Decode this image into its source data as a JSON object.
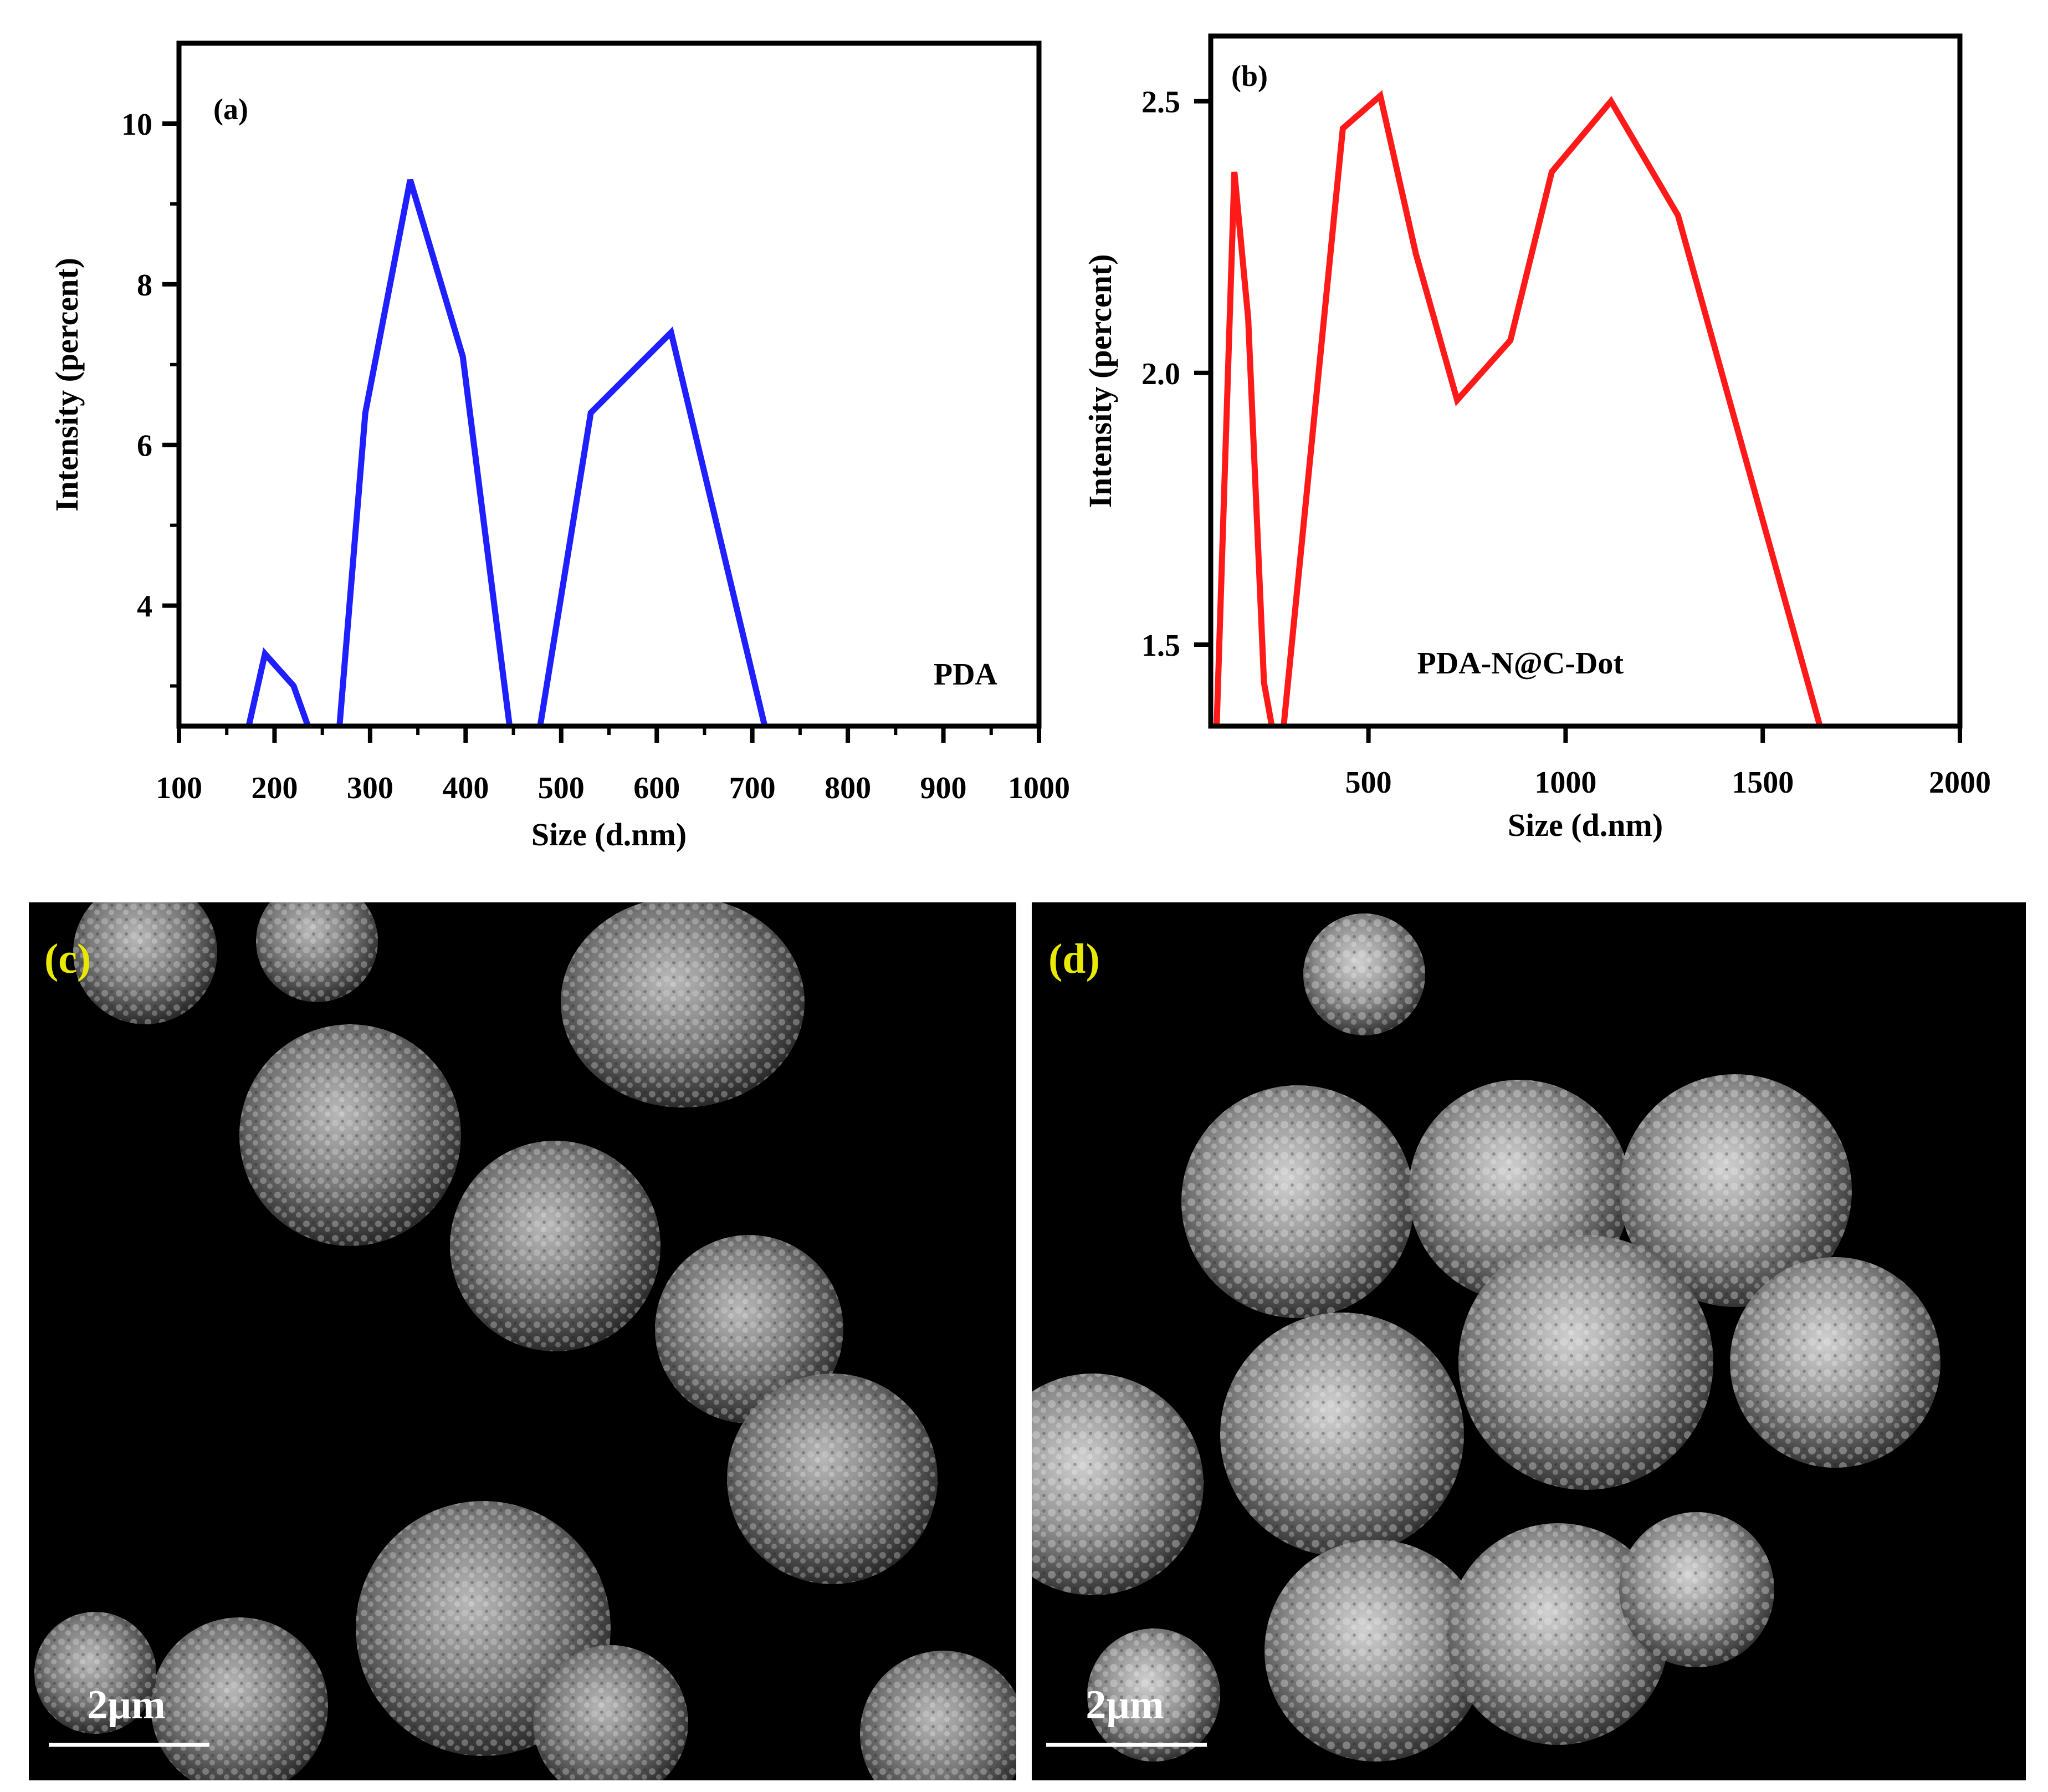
{
  "chart_data": [
    {
      "panel_label": "(a)",
      "type": "line",
      "xlabel": "Size (d.nm)",
      "ylabel": "Intensity (percent)",
      "annotation": "PDA",
      "xlim": [
        100,
        1000
      ],
      "ylim": [
        2.5,
        11
      ],
      "xticks": [
        100,
        200,
        300,
        400,
        500,
        600,
        700,
        800,
        900,
        1000
      ],
      "yticks": [
        4,
        6,
        8,
        10
      ],
      "grid": false,
      "series": [
        {
          "color": "#1f1fff",
          "segments": [
            {
              "x": [
                173,
                190,
                220,
                235
              ],
              "y": [
                2.5,
                3.4,
                3.0,
                2.5
              ]
            },
            {
              "x": [
                268,
                295,
                342,
                397,
                446
              ],
              "y": [
                2.5,
                6.4,
                9.3,
                7.1,
                2.5
              ]
            },
            {
              "x": [
                478,
                531,
                615,
                713
              ],
              "y": [
                2.5,
                6.4,
                7.4,
                2.5
              ]
            }
          ]
        }
      ]
    },
    {
      "panel_label": "(b)",
      "type": "line",
      "xlabel": "Size (d.nm)",
      "ylabel": "Intensity (percent)",
      "annotation": "PDA-N@C-Dot",
      "xlim": [
        100,
        2000
      ],
      "ylim": [
        1.35,
        2.62
      ],
      "xticks": [
        500,
        1000,
        1500,
        2000
      ],
      "yticks": [
        1.5,
        2.0,
        2.5
      ],
      "ytick_labels": [
        "1.5",
        "2.0",
        "2.5"
      ],
      "grid": false,
      "series": [
        {
          "color": "#ff1a1a",
          "segments": [
            {
              "x": [
                115,
                160,
                195,
                235,
                255
              ],
              "y": [
                1.35,
                2.37,
                2.1,
                1.43,
                1.35
              ]
            },
            {
              "x": [
                285,
                360,
                435,
                530,
                620,
                725,
                860,
                965,
                1115,
                1285,
                1645
              ],
              "y": [
                1.35,
                1.9,
                2.45,
                2.51,
                2.22,
                1.95,
                2.06,
                2.37,
                2.5,
                2.29,
                1.35
              ]
            }
          ]
        }
      ]
    }
  ],
  "images": [
    {
      "panel_label": "(c)",
      "scale_bar": "2µm"
    },
    {
      "panel_label": "(d)",
      "scale_bar": "2µm"
    }
  ],
  "colors": {
    "panel_label_sem": "#e8e800",
    "axis": "#000000"
  }
}
